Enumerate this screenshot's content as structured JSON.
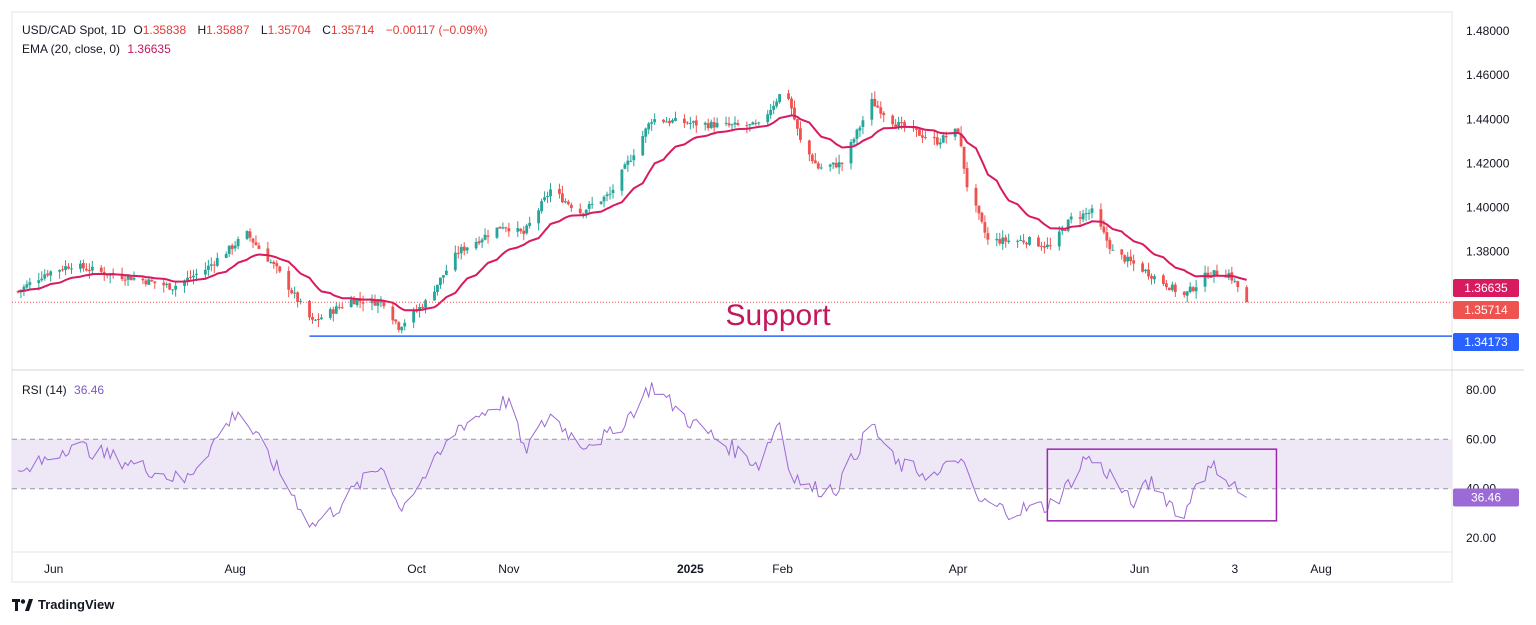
{
  "header": {
    "symbol": "USD/CAD Spot, 1D",
    "o_label": "O",
    "o_value": "1.35838",
    "h_label": "H",
    "h_value": "1.35887",
    "l_label": "L",
    "l_value": "1.35704",
    "c_label": "C",
    "c_value": "1.35714",
    "change": "−0.00117 (−0.09%)",
    "ema_label": "EMA (20, close, 0)",
    "ema_value": "1.36635",
    "rsi_label": "RSI (14)",
    "rsi_value": "36.46"
  },
  "brand": "TradingView",
  "colors": {
    "up": "#26a69a",
    "down": "#ef5350",
    "ema": "#d81b60",
    "support_line": "#2962ff",
    "rsi": "#9c6ad6",
    "rsi_band": "#ede7f6",
    "box": "#9c27b0"
  },
  "chart_data": [
    {
      "type": "candlestick",
      "title": "USD/CAD Spot, 1D",
      "x_tick_labels": [
        "Jun",
        "Aug",
        "Oct",
        "Nov",
        "2025",
        "Feb",
        "Apr",
        "Jun",
        "3",
        "Aug"
      ],
      "y_tick_labels": [
        "1.48000",
        "1.46000",
        "1.44000",
        "1.42000",
        "1.40000",
        "1.38000"
      ],
      "ylim": [
        1.33,
        1.485
      ],
      "annotation": "Support",
      "support_level": 1.34173,
      "price_badges": [
        {
          "label": "1.36635",
          "value": 1.36635,
          "color": "#d81b60"
        },
        {
          "label": "1.35714",
          "value": 1.35714,
          "color": "#ef5350"
        },
        {
          "label": "1.34173",
          "value": 1.34173,
          "color": "#2962ff"
        }
      ],
      "close_anchors": [
        [
          "2024-05-20",
          1.362
        ],
        [
          "2024-05-29",
          1.37
        ],
        [
          "2024-06-07",
          1.374
        ],
        [
          "2024-06-19",
          1.37
        ],
        [
          "2024-06-28",
          1.368
        ],
        [
          "2024-07-11",
          1.364
        ],
        [
          "2024-07-22",
          1.372
        ],
        [
          "2024-08-05",
          1.388
        ],
        [
          "2024-08-15",
          1.372
        ],
        [
          "2024-08-27",
          1.348
        ],
        [
          "2024-09-09",
          1.358
        ],
        [
          "2024-09-20",
          1.357
        ],
        [
          "2024-09-25",
          1.346
        ],
        [
          "2024-10-04",
          1.357
        ],
        [
          "2024-10-15",
          1.38
        ],
        [
          "2024-10-30",
          1.392
        ],
        [
          "2024-11-06",
          1.388
        ],
        [
          "2024-11-15",
          1.408
        ],
        [
          "2024-11-25",
          1.398
        ],
        [
          "2024-12-05",
          1.406
        ],
        [
          "2024-12-13",
          1.425
        ],
        [
          "2024-12-19",
          1.44
        ],
        [
          "2025-01-03",
          1.438
        ],
        [
          "2025-01-15",
          1.437
        ],
        [
          "2025-01-24",
          1.437
        ],
        [
          "2025-02-02",
          1.455
        ],
        [
          "2025-02-07",
          1.43
        ],
        [
          "2025-02-13",
          1.418
        ],
        [
          "2025-02-21",
          1.42
        ],
        [
          "2025-03-03",
          1.448
        ],
        [
          "2025-03-11",
          1.438
        ],
        [
          "2025-03-25",
          1.43
        ],
        [
          "2025-04-01",
          1.435
        ],
        [
          "2025-04-04",
          1.41
        ],
        [
          "2025-04-11",
          1.385
        ],
        [
          "2025-04-25",
          1.385
        ],
        [
          "2025-05-02",
          1.382
        ],
        [
          "2025-05-09",
          1.395
        ],
        [
          "2025-05-16",
          1.398
        ],
        [
          "2025-05-23",
          1.38
        ],
        [
          "2025-06-02",
          1.372
        ],
        [
          "2025-06-16",
          1.36
        ],
        [
          "2025-06-24",
          1.37
        ],
        [
          "2025-07-01",
          1.37
        ],
        [
          "2025-07-04",
          1.364
        ],
        [
          "2025-07-07",
          1.3571
        ]
      ]
    },
    {
      "type": "line",
      "title": "RSI (14)",
      "y_tick_labels": [
        "80.00",
        "60.00",
        "40.00",
        "20.00"
      ],
      "ylim": [
        16,
        84
      ],
      "band": [
        40,
        60
      ],
      "current_value": 36.46,
      "anchors": [
        [
          "2024-05-20",
          45
        ],
        [
          "2024-06-07",
          58
        ],
        [
          "2024-06-28",
          50
        ],
        [
          "2024-07-15",
          43
        ],
        [
          "2024-08-02",
          72
        ],
        [
          "2024-08-15",
          48
        ],
        [
          "2024-08-27",
          25
        ],
        [
          "2024-09-05",
          33
        ],
        [
          "2024-09-12",
          42
        ],
        [
          "2024-09-20",
          50
        ],
        [
          "2024-09-25",
          32
        ],
        [
          "2024-10-07",
          50
        ],
        [
          "2024-10-15",
          65
        ],
        [
          "2024-10-25",
          72
        ],
        [
          "2024-11-01",
          76
        ],
        [
          "2024-11-06",
          55
        ],
        [
          "2024-11-15",
          70
        ],
        [
          "2024-11-25",
          58
        ],
        [
          "2024-12-06",
          62
        ],
        [
          "2024-12-13",
          72
        ],
        [
          "2024-12-19",
          82
        ],
        [
          "2024-12-31",
          68
        ],
        [
          "2025-01-10",
          60
        ],
        [
          "2025-01-24",
          50
        ],
        [
          "2025-01-31",
          68
        ],
        [
          "2025-02-03",
          48
        ],
        [
          "2025-02-10",
          40
        ],
        [
          "2025-02-19",
          40
        ],
        [
          "2025-03-03",
          66
        ],
        [
          "2025-03-11",
          50
        ],
        [
          "2025-03-25",
          45
        ],
        [
          "2025-04-01",
          53
        ],
        [
          "2025-04-08",
          35
        ],
        [
          "2025-04-18",
          31
        ],
        [
          "2025-05-01",
          33
        ],
        [
          "2025-05-06",
          38
        ],
        [
          "2025-05-14",
          53
        ],
        [
          "2025-05-23",
          45
        ],
        [
          "2025-05-29",
          34
        ],
        [
          "2025-06-05",
          43
        ],
        [
          "2025-06-16",
          28
        ],
        [
          "2025-06-20",
          44
        ],
        [
          "2025-06-27",
          49
        ],
        [
          "2025-07-01",
          43
        ],
        [
          "2025-07-07",
          36.46
        ]
      ]
    }
  ]
}
